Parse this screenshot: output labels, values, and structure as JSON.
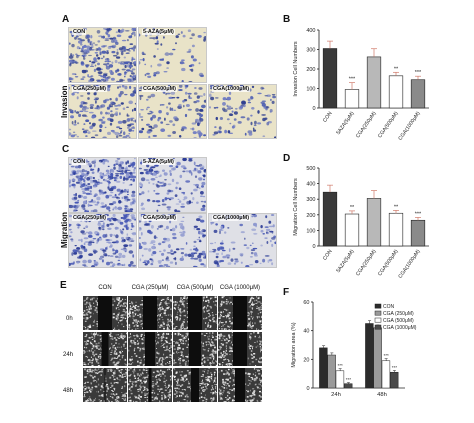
{
  "figure": {
    "letters": [
      "A",
      "B",
      "C",
      "D",
      "E",
      "F"
    ],
    "rows": {
      "invasion": "Invasion",
      "migration": "Migration"
    }
  },
  "invasion_panels": [
    "CON",
    "5-AZA(5μM)",
    "CGA(250μM)",
    "CGA(500μM)",
    "CGA(1000μM)"
  ],
  "migration_panels": [
    "CON",
    "5-AZA(5μM)",
    "CGA(250μM)",
    "CGA(500μM)",
    "CGA(1000μM)"
  ],
  "wound": {
    "headers": [
      "CON",
      "CGA (250μM)",
      "CGA (500μM)",
      "CGA (1000μM)"
    ],
    "times": [
      "0h",
      "24h",
      "48h"
    ]
  },
  "colors": {
    "bar_dark": "#3a3a3a",
    "bar_white": "#ffffff",
    "bar_light": "#d6d6d6",
    "bar_mid": "#9a9a9a",
    "error": "#d07a6a"
  },
  "chart_data": [
    {
      "type": "bar",
      "panel": "B",
      "categories": [
        "CON",
        "5AZA(5μM)",
        "CGA(250μM)",
        "CGA(500μM)",
        "CGA(1000μM)"
      ],
      "values": [
        305,
        95,
        262,
        165,
        145
      ],
      "errors": [
        38,
        35,
        42,
        18,
        18
      ],
      "significance": [
        "",
        "***",
        "",
        "**",
        "***"
      ],
      "fills": [
        "#3a3a3a",
        "#ffffff",
        "#b8b8b8",
        "#ffffff",
        "#8a8a8a"
      ],
      "xlabel": "",
      "ylabel": "Invasion Cell Numbers",
      "ylim": [
        0,
        400
      ],
      "yticks": [
        0,
        100,
        200,
        300,
        400
      ],
      "grid": false
    },
    {
      "type": "bar",
      "panel": "D",
      "categories": [
        "CON",
        "5AZA(5μM)",
        "CGA(250μM)",
        "CGA(500μM)",
        "CGA(1000μM)"
      ],
      "values": [
        345,
        205,
        305,
        210,
        165
      ],
      "errors": [
        45,
        20,
        50,
        18,
        18
      ],
      "significance": [
        "",
        "**",
        "",
        "**",
        "***"
      ],
      "fills": [
        "#3a3a3a",
        "#ffffff",
        "#b8b8b8",
        "#ffffff",
        "#8a8a8a"
      ],
      "xlabel": "",
      "ylabel": "Migration Cell Numbers",
      "ylim": [
        0,
        500
      ],
      "yticks": [
        0,
        100,
        200,
        300,
        400,
        500
      ],
      "grid": false
    },
    {
      "type": "bar",
      "panel": "F",
      "categories": [
        "24h",
        "48h"
      ],
      "series": [
        {
          "name": "CON",
          "values": [
            28,
            45
          ],
          "errors": [
            1.5,
            2
          ]
        },
        {
          "name": "CGA (250μM)",
          "values": [
            23,
            42
          ],
          "errors": [
            1.5,
            2
          ]
        },
        {
          "name": "CGA (500μM)",
          "values": [
            12,
            19
          ],
          "errors": [
            1.5,
            1.5
          ]
        },
        {
          "name": "CGA (1000μM)",
          "values": [
            3,
            11
          ],
          "errors": [
            0.8,
            1.2
          ]
        }
      ],
      "significance": [
        [
          "",
          "",
          "***",
          "***"
        ],
        [
          "",
          "",
          "***",
          "***"
        ]
      ],
      "fills": [
        "#2b2b2b",
        "#9a9a9a",
        "#ffffff",
        "#4a4a4a"
      ],
      "xlabel": "",
      "ylabel": "Migration area (%)",
      "ylim": [
        0,
        60
      ],
      "yticks": [
        0,
        20,
        40,
        60
      ],
      "legend": "top-right",
      "grid": false
    }
  ]
}
